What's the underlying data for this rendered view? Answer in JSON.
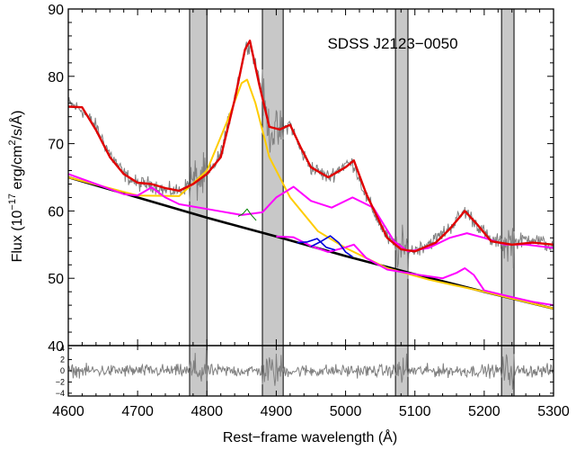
{
  "chart_data": {
    "type": "line",
    "title": "SDSS J2123−0050",
    "xlabel": "Rest−frame wavelength (Å)",
    "ylabel_main": "Flux (10",
    "ylabel_exp": "−17",
    "ylabel_rest": " erg/cm",
    "ylabel_exp2": "2",
    "ylabel_end": "/s/Å)",
    "xlim": [
      4600,
      5300
    ],
    "ylim": [
      40,
      90
    ],
    "xticks": [
      "4600",
      "4700",
      "4800",
      "4900",
      "5000",
      "5100",
      "5200",
      "5300"
    ],
    "yticks": [
      "40",
      "50",
      "60",
      "70",
      "80",
      "90"
    ],
    "residual_ylim": [
      -4.5,
      4.5
    ],
    "residual_yticks": [
      "4",
      "2",
      "0",
      "−2",
      "−4"
    ],
    "masked_bands": [
      [
        4775,
        4800
      ],
      [
        4880,
        4910
      ],
      [
        5072,
        5090
      ],
      [
        5225,
        5243
      ]
    ],
    "colors": {
      "data": "#808080",
      "total_fit": "#e00000",
      "broad_hbeta": "#ffcc00",
      "feii": "#ff00ff",
      "continuum": "#000000",
      "narrow_hbeta": "#008000",
      "oiii": "#0000dd",
      "band": "#c8c8c8"
    },
    "series": [
      {
        "id": "continuum",
        "x": [
          4600,
          4700,
          4800,
          4900,
          5000,
          5100,
          5200,
          5300
        ],
        "y": [
          65,
          62,
          59,
          56.2,
          53.3,
          50.6,
          48,
          45.5
        ]
      },
      {
        "id": "broad_hbeta",
        "x": [
          4600,
          4700,
          4760,
          4800,
          4830,
          4850,
          4858,
          4870,
          4890,
          4920,
          4960,
          5000,
          5060,
          5120,
          5200,
          5300
        ],
        "y": [
          65,
          62.3,
          62.2,
          66,
          73.5,
          79,
          79.5,
          76,
          68,
          62,
          57,
          54.5,
          51.5,
          49.8,
          48,
          45.5
        ]
      },
      {
        "id": "feii_top",
        "x": [
          4600,
          4640,
          4680,
          4700,
          4720,
          4740,
          4760,
          4800,
          4850,
          4880,
          4900,
          4925,
          4950,
          4980,
          5010,
          5040,
          5070,
          5090,
          5120,
          5150,
          5175,
          5200,
          5230,
          5260,
          5300
        ],
        "y": [
          65.5,
          64,
          62.5,
          62.3,
          63.5,
          62,
          61,
          60.3,
          59.4,
          59.8,
          62,
          63.6,
          61.5,
          60.5,
          62,
          60.5,
          55.5,
          54,
          54.5,
          56,
          56.7,
          56,
          55,
          55,
          54.5
        ]
      },
      {
        "id": "feii_bottom",
        "x": [
          4900,
          4925,
          4950,
          4975,
          5000,
          5012,
          5030,
          5060,
          5100,
          5140,
          5160,
          5172,
          5185,
          5200,
          5240,
          5270,
          5300
        ],
        "y": [
          56.2,
          56.1,
          54.8,
          53.9,
          54.6,
          55,
          53,
          51.3,
          50.6,
          50,
          50.8,
          51.5,
          50.5,
          48.2,
          47.2,
          46.5,
          46
        ]
      },
      {
        "id": "narrow_hbeta",
        "x": [
          4845,
          4852,
          4858,
          4864,
          4871
        ],
        "y": [
          59.2,
          59.6,
          60.3,
          59.4,
          58.6
        ]
      },
      {
        "id": "oiii_4959",
        "x": [
          4930,
          4945,
          4959,
          4972,
          4985
        ],
        "y": [
          55.3,
          55.4,
          55.9,
          54.6,
          54.2
        ]
      },
      {
        "id": "oiii_5007",
        "x": [
          4950,
          4965,
          4978,
          4990,
          5000,
          5010
        ],
        "y": [
          54.7,
          55.5,
          56.3,
          55.3,
          53.9,
          53.2
        ]
      },
      {
        "id": "total_fit",
        "x": [
          4600,
          4620,
          4640,
          4660,
          4680,
          4700,
          4720,
          4740,
          4760,
          4780,
          4800,
          4820,
          4840,
          4855,
          4862,
          4875,
          4890,
          4905,
          4920,
          4935,
          4950,
          4975,
          5000,
          5012,
          5030,
          5060,
          5080,
          5100,
          5130,
          5150,
          5172,
          5190,
          5210,
          5240,
          5270,
          5300
        ],
        "y": [
          75.5,
          75.4,
          72,
          68,
          65.5,
          64.2,
          64,
          63.4,
          63,
          64,
          65.5,
          68,
          76.5,
          84,
          85.3,
          79,
          72.5,
          72.1,
          72.8,
          69.5,
          66.5,
          65,
          66.5,
          67.5,
          62.5,
          56,
          54.3,
          54,
          55.3,
          57.3,
          60,
          58,
          55.5,
          55,
          55.3,
          55
        ]
      }
    ],
    "data_base": {
      "x": [
        4600,
        4620,
        4640,
        4660,
        4680,
        4700,
        4720,
        4740,
        4760,
        4780,
        4800,
        4820,
        4840,
        4855,
        4862,
        4875,
        4890,
        4905,
        4920,
        4935,
        4950,
        4975,
        5000,
        5012,
        5030,
        5060,
        5080,
        5100,
        5130,
        5150,
        5172,
        5190,
        5210,
        5240,
        5270,
        5300
      ],
      "y": [
        76,
        75,
        72.5,
        68.5,
        65.5,
        64,
        64,
        63,
        63,
        64.5,
        65,
        68.5,
        77,
        84,
        85,
        80,
        72,
        71.5,
        73,
        69,
        66.5,
        65,
        67,
        67,
        62,
        56,
        54,
        54.2,
        55.8,
        57.5,
        60,
        58,
        55.5,
        55.3,
        56,
        54.5
      ]
    }
  }
}
